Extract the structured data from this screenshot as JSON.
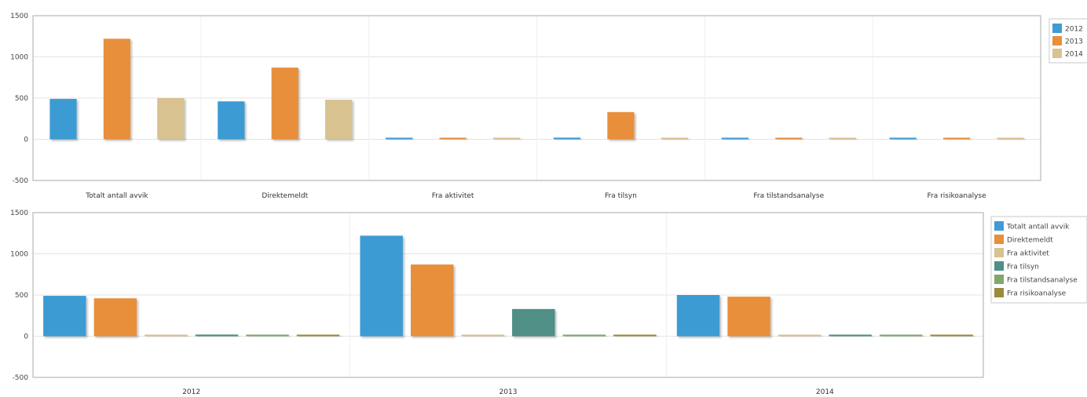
{
  "colors": {
    "blue": "#3e9bd3",
    "orange": "#e88f3a",
    "sand": "#d8c290",
    "teal": "#4f8f86",
    "green": "#7fa86a",
    "olive": "#9a8a3a"
  },
  "chart_data": [
    {
      "type": "bar",
      "categories": [
        "Totalt antall avvik",
        "Direktemeldt",
        "Fra aktivitet",
        "Fra tilsyn",
        "Fra tilstandsanalyse",
        "Fra risikoanalyse"
      ],
      "series": [
        {
          "name": "2012",
          "color": "#3e9bd3",
          "values": [
            490,
            460,
            5,
            20,
            0,
            0
          ]
        },
        {
          "name": "2013",
          "color": "#e88f3a",
          "values": [
            1220,
            870,
            15,
            330,
            0,
            0
          ]
        },
        {
          "name": "2014",
          "color": "#d8c290",
          "values": [
            500,
            480,
            5,
            5,
            0,
            0
          ]
        }
      ],
      "ylim": [
        -500,
        1500
      ],
      "yticks": [
        "1500",
        "1000",
        "500",
        "0",
        "-500"
      ],
      "legend": "right",
      "grid": true
    },
    {
      "type": "bar",
      "categories": [
        "2012",
        "2013",
        "2014"
      ],
      "series": [
        {
          "name": "Totalt antall avvik",
          "color": "#3e9bd3",
          "values": [
            490,
            1220,
            500
          ]
        },
        {
          "name": "Direktemeldt",
          "color": "#e88f3a",
          "values": [
            460,
            870,
            480
          ]
        },
        {
          "name": "Fra aktivitet",
          "color": "#d8c290",
          "values": [
            5,
            15,
            5
          ]
        },
        {
          "name": "Fra tilsyn",
          "color": "#4f8f86",
          "values": [
            20,
            330,
            5
          ]
        },
        {
          "name": "Fra tilstandsanalyse",
          "color": "#7fa86a",
          "values": [
            0,
            0,
            0
          ]
        },
        {
          "name": "Fra risikoanalyse",
          "color": "#9a8a3a",
          "values": [
            0,
            0,
            0
          ]
        }
      ],
      "ylim": [
        -500,
        1500
      ],
      "yticks": [
        "1500",
        "1000",
        "500",
        "0",
        "-500"
      ],
      "legend": "right",
      "grid": true
    }
  ]
}
